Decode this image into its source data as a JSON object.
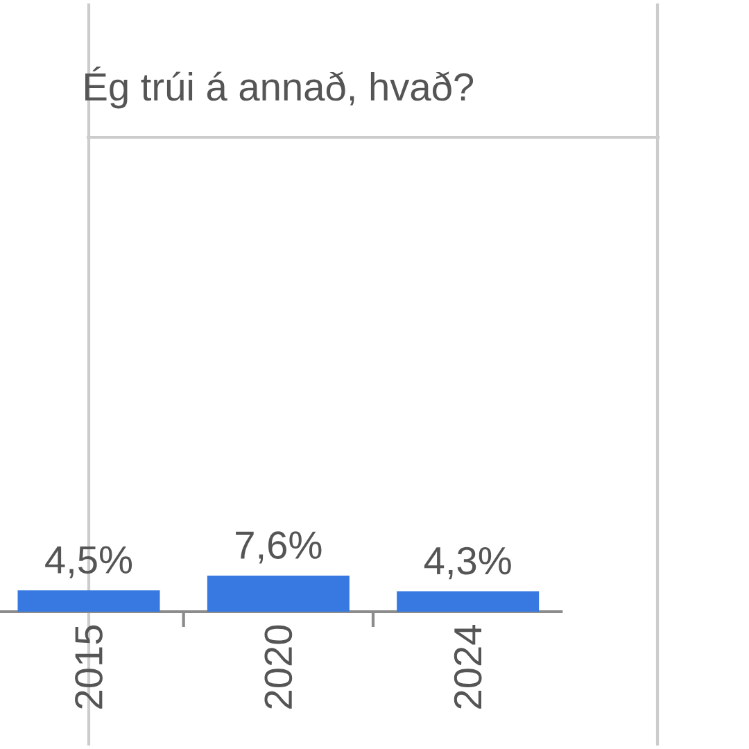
{
  "chart_data": {
    "type": "bar",
    "title": "Ég trúi á annað, hvað?",
    "categories": [
      "2015",
      "2020",
      "2024"
    ],
    "values": [
      4.5,
      7.6,
      4.3
    ],
    "value_labels": [
      "4,5%",
      "7,6%",
      "4,3%"
    ],
    "color": "#3779e1",
    "ylim": [
      0,
      100
    ],
    "tick_labels": "x"
  }
}
